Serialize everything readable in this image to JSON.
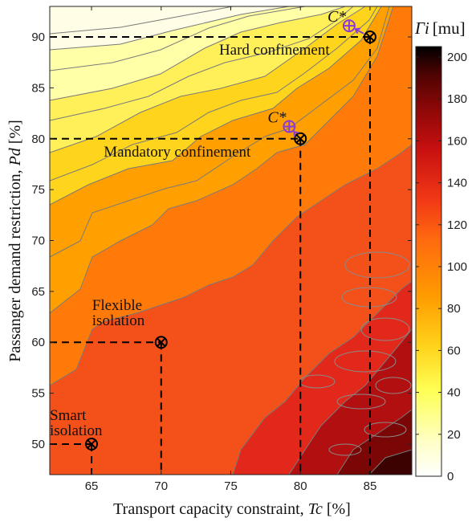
{
  "chart_data": {
    "type": "heatmap",
    "title": "",
    "xlabel": {
      "prefix": "Transport capacity constraint, ",
      "var": "Tc",
      "unit": " [%]"
    },
    "ylabel": {
      "prefix": "Passanger demand restriction, ",
      "var": "Pd",
      "unit": " [%]"
    },
    "xlim": [
      62,
      88
    ],
    "ylim": [
      47,
      93
    ],
    "xticks": [
      65,
      70,
      75,
      80,
      85
    ],
    "yticks": [
      50,
      55,
      60,
      65,
      70,
      75,
      80,
      85,
      90
    ],
    "colorbar": {
      "label_var": "Γi",
      "label_unit": "[mu]",
      "min": 0,
      "max": 205,
      "ticks": [
        0,
        20,
        40,
        60,
        80,
        100,
        120,
        140,
        160,
        180,
        200
      ],
      "colormap": "hot (reversed)",
      "colors": [
        "#ffffff",
        "#ffffbf",
        "#ffff55",
        "#ffd41c",
        "#ff9b00",
        "#ff6a0f",
        "#f23a16",
        "#c81010",
        "#8a0707",
        "#4a0303",
        "#000000"
      ]
    },
    "grid": false,
    "points": [
      {
        "label": "Smart\nisolation",
        "x": 65,
        "y": 50
      },
      {
        "label": "Flexible\nisolation",
        "x": 70,
        "y": 60
      },
      {
        "label": "Mandatory confinement",
        "x": 80,
        "y": 80
      },
      {
        "label": "Hard confinement",
        "x": 85,
        "y": 90
      }
    ],
    "optima": [
      {
        "label": "C*",
        "x": 79.2,
        "y": 81.2,
        "from": [
          80,
          80
        ]
      },
      {
        "label": "C*",
        "x": 83.5,
        "y": 91.1,
        "from": [
          85,
          90
        ]
      }
    ],
    "marker_color_optimum": "#8a3bd6"
  }
}
